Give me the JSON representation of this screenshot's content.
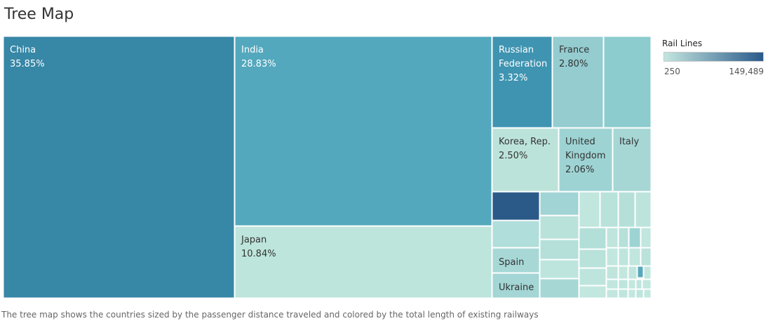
{
  "title": "Tree Map",
  "caption": "The tree map shows the countries sized by the passenger distance traveled and colored by the total length of existing railways",
  "legend": {
    "title": "Rail Lines",
    "min_label": "250",
    "max_label": "149,489",
    "color_low": "#c3e6df",
    "color_high": "#2a5a8b"
  },
  "chart_data": {
    "type": "treemap",
    "size_measure": "passenger distance traveled (share)",
    "color_measure": "Rail Lines",
    "color_range": [
      250,
      149489
    ],
    "tiles": [
      {
        "label": "China",
        "pct": "35.85%",
        "share": 35.85,
        "color": "#3787a6"
      },
      {
        "label": "India",
        "pct": "28.83%",
        "share": 28.83,
        "color": "#53a8bd"
      },
      {
        "label": "Japan",
        "pct": "10.84%",
        "share": 10.84,
        "color": "#bde5db"
      },
      {
        "label": "Russian Federation",
        "pct": "3.32%",
        "share": 3.32,
        "color": "#3f94b1"
      },
      {
        "label": "France",
        "pct": "2.80%",
        "share": 2.8,
        "color": "#94ccd0"
      },
      {
        "label": "Korea, Rep.",
        "pct": "2.50%",
        "share": 2.5,
        "color": "#bce3da"
      },
      {
        "label": "United Kingdom",
        "pct": "2.06%",
        "share": 2.06,
        "color": "#9ed3d3"
      },
      {
        "label": "Italy",
        "pct": "",
        "share": 1.6,
        "color": "#a6d7d5"
      },
      {
        "label": "Spain",
        "pct": "",
        "share": 0.75,
        "color": "#a7d8d6"
      },
      {
        "label": "Ukraine",
        "pct": "",
        "share": 0.7,
        "color": "#a3d6d4"
      }
    ]
  }
}
